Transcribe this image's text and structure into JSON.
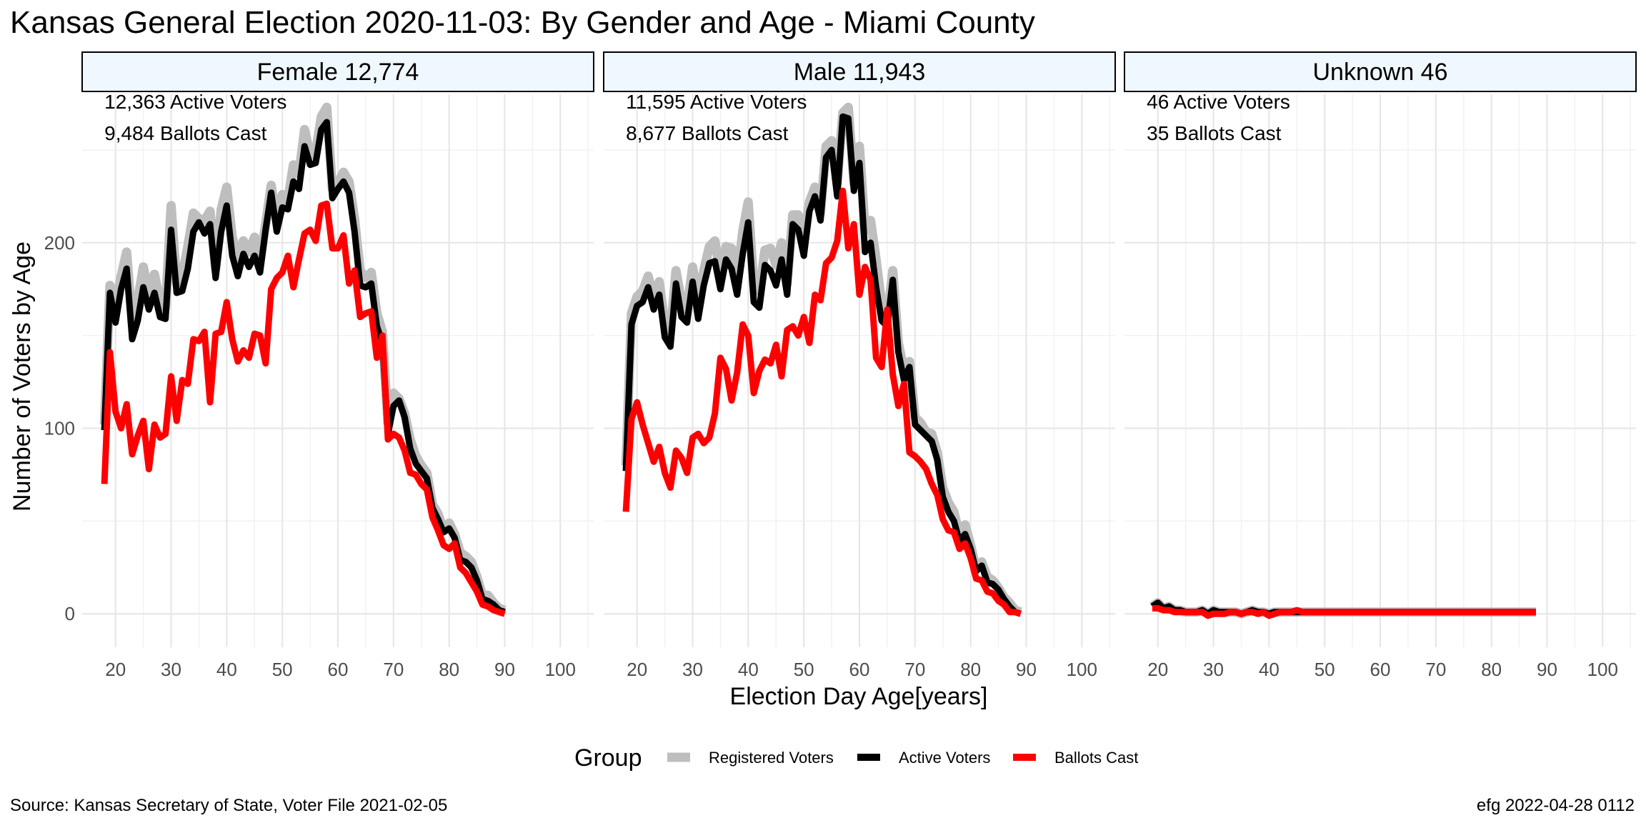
{
  "title": "Kansas General Election 2020-11-03:  By Gender and Age - Miami County",
  "caption_left": "Source:  Kansas Secretary of State, Voter File  2021-02-05",
  "caption_right": "efg 2022-04-28 0112",
  "chart_data": {
    "type": "line",
    "title": "Kansas General Election 2020-11-03:  By Gender and Age - Miami County",
    "xlabel": "Election Day Age[years]",
    "ylabel": "Number of Voters by Age",
    "xlim": [
      14,
      106
    ],
    "ylim": [
      -18,
      280
    ],
    "x_ticks": [
      20,
      30,
      40,
      50,
      60,
      70,
      80,
      90,
      100
    ],
    "y_ticks": [
      0,
      100,
      200
    ],
    "grid": true,
    "legend": {
      "title": "Group",
      "position": "bottom",
      "items": [
        {
          "label": "Registered Voters",
          "color": "#bebebe"
        },
        {
          "label": "Active Voters",
          "color": "#000000"
        },
        {
          "label": "Ballots Cast",
          "color": "#ff0000"
        }
      ]
    },
    "panels": [
      {
        "strip": "Female 12,774",
        "annotations": [
          "12,363 Active Voters",
          "9,484 Ballots Cast"
        ],
        "series": [
          {
            "name": "Registered Voters",
            "x_start": 18,
            "values": [
              102,
              177,
              164,
              182,
              195,
              157,
              169,
              187,
              173,
              183,
              168,
              165,
              220,
              178,
              182,
              198,
              216,
              213,
              212,
              217,
              186,
              218,
              230,
              203,
              192,
              201,
              195,
              203,
              190,
              210,
              231,
              212,
              226,
              223,
              242,
              237,
              261,
              247,
              249,
              268,
              273,
              229,
              232,
              238,
              233,
              213,
              185,
              181,
              184,
              162,
              152,
              103,
              119,
              116,
              108,
              94,
              85,
              80,
              76,
              59,
              54,
              45,
              49,
              43,
              33,
              31,
              28,
              20,
              10,
              10,
              6,
              3,
              2
            ]
          },
          {
            "name": "Active Voters",
            "x_start": 18,
            "values": [
              99,
              173,
              157,
              175,
              186,
              148,
              158,
              176,
              164,
              173,
              160,
              159,
              207,
              173,
              174,
              186,
              206,
              211,
              205,
              210,
              181,
              206,
              220,
              193,
              182,
              194,
              187,
              193,
              184,
              207,
              227,
              206,
              219,
              218,
              233,
              229,
              252,
              242,
              243,
              261,
              265,
              224,
              229,
              233,
              227,
              206,
              177,
              176,
              178,
              155,
              146,
              97,
              112,
              115,
              106,
              89,
              81,
              77,
              73,
              57,
              51,
              44,
              46,
              41,
              29,
              28,
              25,
              18,
              8,
              7,
              5,
              2,
              1
            ]
          },
          {
            "name": "Ballots Cast",
            "x_start": 18,
            "values": [
              70,
              141,
              109,
              100,
              113,
              86,
              96,
              104,
              78,
              102,
              95,
              97,
              128,
              104,
              126,
              124,
              148,
              147,
              152,
              114,
              151,
              152,
              168,
              148,
              136,
              142,
              138,
              151,
              150,
              135,
              175,
              181,
              184,
              193,
              176,
              191,
              205,
              207,
              201,
              220,
              221,
              197,
              197,
              204,
              178,
              185,
              160,
              162,
              163,
              138,
              150,
              94,
              97,
              95,
              88,
              76,
              75,
              70,
              67,
              52,
              45,
              37,
              35,
              38,
              25,
              22,
              17,
              12,
              5,
              4,
              2,
              1,
              0
            ]
          }
        ]
      },
      {
        "strip": "Male 11,943",
        "annotations": [
          "11,595 Active Voters",
          "8,677 Ballots Cast"
        ],
        "series": [
          {
            "name": "Registered Voters",
            "x_start": 18,
            "values": [
              80,
              162,
              171,
              174,
              182,
              170,
              179,
              156,
              151,
              185,
              168,
              164,
              187,
              168,
              185,
              198,
              201,
              183,
              198,
              197,
              181,
              206,
              222,
              177,
              174,
              196,
              197,
              188,
              200,
              178,
              215,
              215,
              201,
              222,
              230,
              216,
              252,
              255,
              232,
              270,
              273,
              232,
              252,
              207,
              212,
              191,
              167,
              159,
              185,
              146,
              131,
              136,
              106,
              103,
              98,
              97,
              87,
              68,
              60,
              55,
              42,
              48,
              37,
              24,
              28,
              20,
              18,
              14,
              9,
              6,
              2,
              1
            ]
          },
          {
            "name": "Active Voters",
            "x_start": 18,
            "values": [
              77,
              156,
              166,
              168,
              176,
              164,
              172,
              149,
              144,
              178,
              160,
              157,
              179,
              159,
              177,
              189,
              190,
              175,
              191,
              186,
              172,
              194,
              211,
              168,
              165,
              188,
              185,
              177,
              191,
              172,
              210,
              207,
              193,
              217,
              225,
              212,
              246,
              250,
              225,
              268,
              267,
              228,
              243,
              195,
              200,
              176,
              158,
              155,
              180,
              141,
              126,
              133,
              102,
              99,
              96,
              93,
              83,
              63,
              55,
              50,
              39,
              43,
              35,
              23,
              26,
              17,
              16,
              13,
              8,
              4,
              1,
              0
            ]
          },
          {
            "name": "Ballots Cast",
            "x_start": 18,
            "values": [
              55,
              105,
              114,
              102,
              92,
              82,
              90,
              76,
              68,
              88,
              84,
              76,
              95,
              97,
              92,
              95,
              108,
              138,
              132,
              115,
              130,
              156,
              150,
              119,
              131,
              137,
              135,
              145,
              128,
              153,
              155,
              150,
              160,
              146,
              172,
              169,
              189,
              192,
              201,
              228,
              197,
              210,
              172,
              187,
              180,
              138,
              133,
              164,
              129,
              112,
              124,
              87,
              85,
              82,
              78,
              70,
              64,
              51,
              45,
              44,
              35,
              38,
              30,
              19,
              18,
              12,
              11,
              7,
              5,
              1,
              1,
              0
            ]
          }
        ]
      },
      {
        "strip": "Unknown 46",
        "annotations": [
          "46 Active Voters",
          "35 Ballots Cast"
        ],
        "series": [
          {
            "name": "Registered Voters",
            "x_start": 19,
            "values": [
              4,
              6,
              3,
              4,
              2,
              2,
              1,
              1,
              1,
              2,
              0,
              2,
              1,
              1,
              1,
              1,
              0,
              1,
              2,
              1,
              1,
              0,
              1,
              1,
              1,
              1,
              1,
              1,
              1,
              1,
              1,
              1,
              1,
              1,
              1,
              1,
              1,
              1,
              1,
              1,
              1,
              1,
              1,
              1,
              1,
              1,
              1,
              1,
              1,
              1,
              1,
              1,
              1,
              1,
              1,
              1,
              1,
              1,
              1,
              1,
              1,
              1,
              1,
              1,
              1,
              1,
              1,
              1,
              1,
              1
            ]
          },
          {
            "name": "Active Voters",
            "x_start": 19,
            "values": [
              4,
              6,
              3,
              4,
              2,
              2,
              1,
              1,
              1,
              2,
              0,
              2,
              1,
              1,
              1,
              1,
              0,
              1,
              2,
              1,
              1,
              0,
              1,
              1,
              1,
              1,
              1,
              1,
              1,
              1,
              1,
              1,
              1,
              1,
              1,
              1,
              1,
              1,
              1,
              1,
              1,
              1,
              1,
              1,
              1,
              1,
              1,
              1,
              1,
              1,
              1,
              1,
              1,
              1,
              1,
              1,
              1,
              1,
              1,
              1,
              1,
              1,
              1,
              1,
              1,
              1,
              1,
              1,
              1,
              1
            ]
          },
          {
            "name": "Ballots Cast",
            "x_start": 19,
            "values": [
              3,
              3,
              2,
              2,
              1,
              1,
              1,
              1,
              1,
              1,
              -1,
              0,
              0,
              0,
              1,
              1,
              0,
              1,
              1,
              0,
              1,
              -1,
              0,
              1,
              1,
              1,
              2,
              1,
              1,
              1,
              1,
              1,
              1,
              1,
              1,
              1,
              1,
              1,
              1,
              1,
              1,
              1,
              1,
              1,
              1,
              1,
              1,
              1,
              1,
              1,
              1,
              1,
              1,
              1,
              1,
              1,
              1,
              1,
              1,
              1,
              1,
              1,
              1,
              1,
              1,
              1,
              1,
              1,
              1,
              1
            ]
          }
        ]
      }
    ]
  }
}
